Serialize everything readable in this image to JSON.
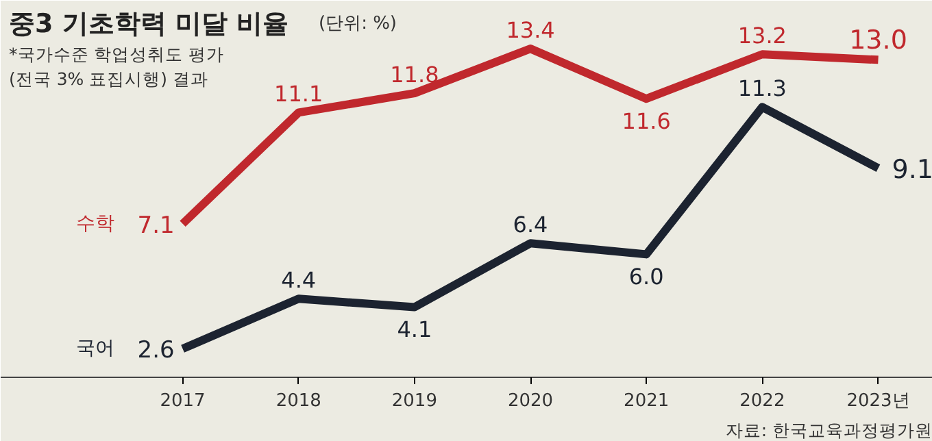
{
  "chart_data": {
    "type": "line",
    "title": "중3 기초학력 미달 비율",
    "subtitle": "(단위: %)",
    "annotations": [
      "*국가수준 학업성취도 평가\n(전국 3% 표집시행) 결과",
      "자료: 한국교육과정평가원"
    ],
    "categories": [
      "2017",
      "2018",
      "2019",
      "2020",
      "2021",
      "2022",
      "2023년"
    ],
    "series": [
      {
        "name": "수학",
        "color": "#c0282d",
        "values": [
          7.1,
          11.1,
          11.8,
          13.4,
          11.6,
          13.2,
          13.0
        ],
        "value_labels": [
          "7.1",
          "11.1",
          "11.8",
          "13.4",
          "11.6",
          "13.2",
          "13.0"
        ]
      },
      {
        "name": "국어",
        "color": "#1c2330",
        "values": [
          2.6,
          4.4,
          4.1,
          6.4,
          6.0,
          11.3,
          9.1
        ],
        "value_labels": [
          "2.6",
          "4.4",
          "4.1",
          "6.4",
          "6.0",
          "11.3",
          "9.1"
        ]
      }
    ],
    "grid": false,
    "marker": "none",
    "line_style": "solid"
  }
}
